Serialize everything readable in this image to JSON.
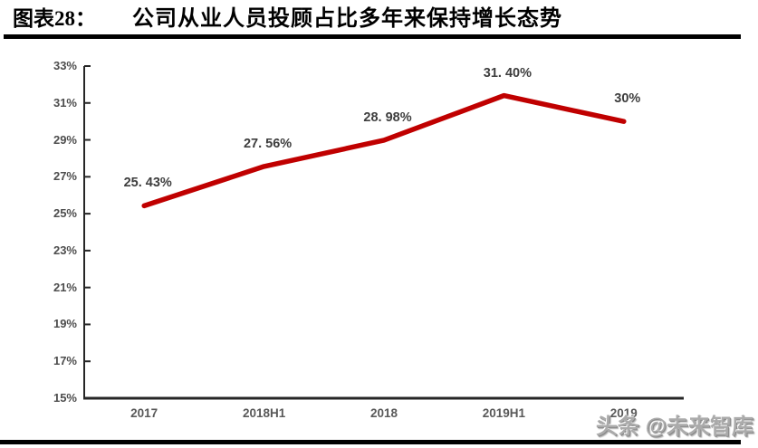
{
  "header": {
    "figure_label": "图表28：",
    "title": "公司从业人员投顾占比多年来保持增长态势"
  },
  "watermark": {
    "text": "头条 @未来智库"
  },
  "colors": {
    "line": "#c00000",
    "axis": "#262626",
    "tick_label": "#595959",
    "data_label": "#3d3d3d",
    "rule": "#000000"
  },
  "chart_data": {
    "type": "line",
    "title": "公司从业人员投顾占比多年来保持增长态势",
    "categories": [
      "2017",
      "2018H1",
      "2018",
      "2019H1",
      "2019"
    ],
    "values": [
      25.43,
      27.56,
      28.98,
      31.4,
      30.0
    ],
    "point_labels": [
      "25. 43%",
      "27. 56%",
      "28. 98%",
      "31. 40%",
      "30%"
    ],
    "y_tick_labels": [
      "33%",
      "31%",
      "29%",
      "27%",
      "25%",
      "23%",
      "21%",
      "19%",
      "17%",
      "15%"
    ],
    "ylim": [
      15,
      33
    ],
    "y_tick_step": 2,
    "xlabel": "",
    "ylabel": "",
    "grid": false,
    "legend": "none",
    "line_color": "#c00000"
  }
}
